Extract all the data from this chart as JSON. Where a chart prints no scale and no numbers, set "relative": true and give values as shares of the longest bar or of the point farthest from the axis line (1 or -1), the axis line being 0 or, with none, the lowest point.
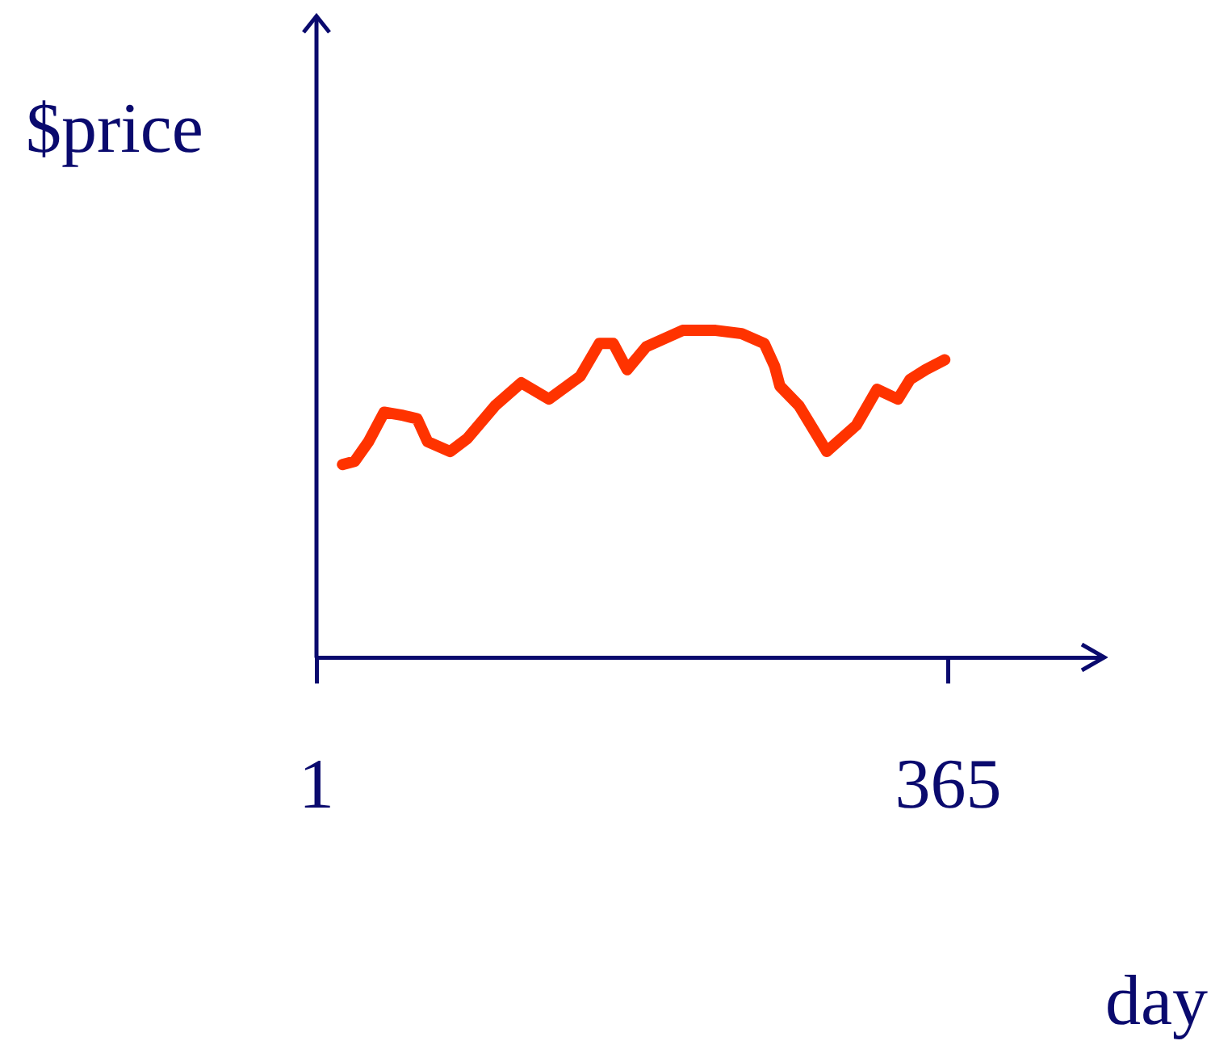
{
  "chart_data": {
    "type": "line",
    "relative": true,
    "xlabel": "day",
    "ylabel": "$price",
    "xlim": [
      1,
      455
    ],
    "xticks": [
      1,
      365
    ],
    "grid": false,
    "legend": false,
    "marker": "none",
    "line_style": "solid",
    "series": [
      {
        "color": "#ff3300",
        "x": [
          16,
          23,
          31,
          40,
          51,
          59,
          65,
          78,
          88,
          104,
          119,
          135,
          153,
          164,
          172,
          180,
          191,
          212,
          231,
          246,
          259,
          265,
          268,
          279,
          295,
          312,
          324,
          336,
          343,
          352,
          363
        ],
        "values": [
          0.59,
          0.6,
          0.66,
          0.75,
          0.74,
          0.73,
          0.66,
          0.63,
          0.67,
          0.77,
          0.84,
          0.79,
          0.86,
          0.96,
          0.96,
          0.88,
          0.95,
          1,
          1,
          0.99,
          0.96,
          0.89,
          0.83,
          0.77,
          0.63,
          0.71,
          0.82,
          0.79,
          0.85,
          0.88,
          0.91
        ]
      }
    ]
  }
}
